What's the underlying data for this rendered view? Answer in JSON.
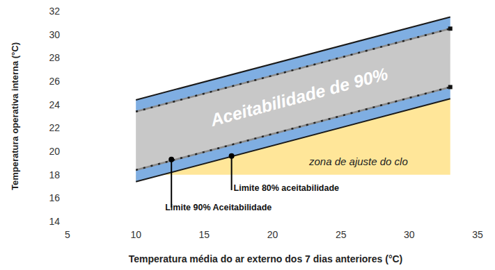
{
  "chart_data": {
    "type": "line",
    "x_label": "Temperatura média do ar externo dos 7 dias anteriores (°C)",
    "y_label": "Temperatura operativa interna (°C)",
    "x": [
      10,
      33
    ],
    "series": [
      {
        "values": [
          24.4,
          31.5
        ],
        "color": "#1a1a1a",
        "line_style": "solid"
      },
      {
        "values": [
          23.4,
          30.5
        ],
        "color": "#8a8a8a",
        "line_style": "dashed",
        "marker": "square"
      },
      {
        "values": [
          18.4,
          25.5
        ],
        "color": "#8a8a8a",
        "line_style": "dashed",
        "marker": "square"
      },
      {
        "values": [
          17.4,
          24.5
        ],
        "color": "#1a1a1a",
        "line_style": "solid"
      }
    ],
    "xlim": [
      5,
      35
    ],
    "xticks": [
      5,
      10,
      15,
      20,
      25,
      30,
      35
    ],
    "ylim": [
      14,
      32
    ],
    "yticks": [
      14,
      16,
      18,
      20,
      22,
      24,
      26,
      28,
      30,
      32
    ],
    "grid": false,
    "band_text": "Aceitabilidade de 90%",
    "clo_zone": {
      "text": "zona de ajuste do clo",
      "y_min": 18,
      "color": "#ffe699"
    },
    "annotations": [
      {
        "text": "Limite 90% Aceitabilidade",
        "x": 12.6,
        "y": 19.3
      },
      {
        "text": "Limite 80% aceitabilidade",
        "x": 17,
        "y": 19.6
      }
    ]
  }
}
